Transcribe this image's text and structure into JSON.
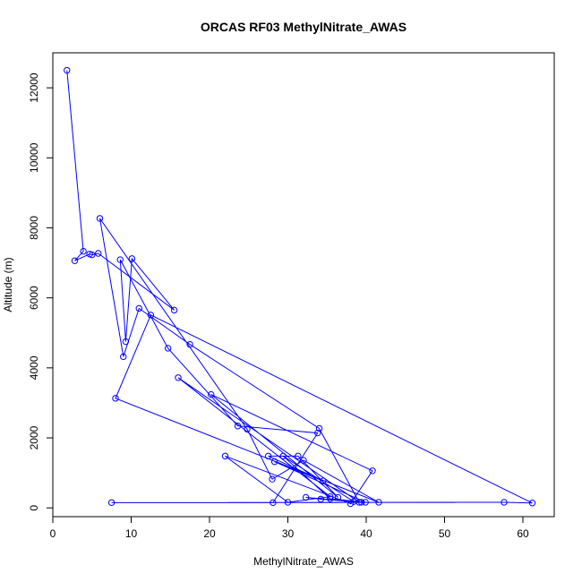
{
  "chart_data": {
    "type": "line",
    "title": "ORCAS RF03 MethylNitrate_AWAS",
    "xlabel": "MethylNitrate_AWAS",
    "ylabel": "Altitude (m)",
    "xlim": [
      0,
      64
    ],
    "ylim": [
      -250,
      13000
    ],
    "x_ticks": [
      0,
      10,
      20,
      30,
      40,
      50,
      60
    ],
    "y_ticks": [
      0,
      2000,
      4000,
      6000,
      8000,
      10000,
      12000
    ],
    "grid": false,
    "legend": "none",
    "series": [
      {
        "color": "#0000ff",
        "marker": "open-circle",
        "points": [
          [
            1.8,
            12500
          ],
          [
            3.9,
            7330
          ],
          [
            2.8,
            7060
          ],
          [
            4.7,
            7250
          ],
          [
            5.0,
            7230
          ],
          [
            5.8,
            7270
          ],
          [
            15.5,
            5650
          ],
          [
            10.1,
            7120
          ],
          [
            9.3,
            4750
          ],
          [
            8.6,
            7090
          ],
          [
            14.7,
            4560
          ],
          [
            23.6,
            2340
          ],
          [
            33.8,
            2140
          ],
          [
            28.1,
            150
          ],
          [
            7.5,
            150
          ],
          [
            57.6,
            160
          ],
          [
            61.2,
            140
          ],
          [
            12.5,
            5510
          ],
          [
            8.0,
            3130
          ],
          [
            41.6,
            160
          ],
          [
            32.0,
            1360
          ],
          [
            28.0,
            820
          ],
          [
            24.8,
            2250
          ],
          [
            6.0,
            8270
          ],
          [
            9.0,
            4320
          ],
          [
            11.0,
            5700
          ],
          [
            17.5,
            4670
          ],
          [
            34.0,
            2270
          ],
          [
            39.1,
            160
          ],
          [
            16.0,
            3720
          ],
          [
            35.4,
            320
          ],
          [
            30.0,
            160
          ],
          [
            22.0,
            1480
          ],
          [
            38.0,
            120
          ],
          [
            40.8,
            1060
          ],
          [
            20.2,
            3240
          ],
          [
            36.4,
            300
          ],
          [
            31.3,
            1480
          ],
          [
            27.5,
            1480
          ],
          [
            34.5,
            770
          ],
          [
            28.3,
            1320
          ],
          [
            39.9,
            160
          ],
          [
            35.4,
            260
          ],
          [
            29.4,
            1480
          ],
          [
            38.4,
            180
          ],
          [
            34.2,
            250
          ],
          [
            32.3,
            300
          ],
          [
            39.4,
            160
          ]
        ]
      }
    ]
  }
}
